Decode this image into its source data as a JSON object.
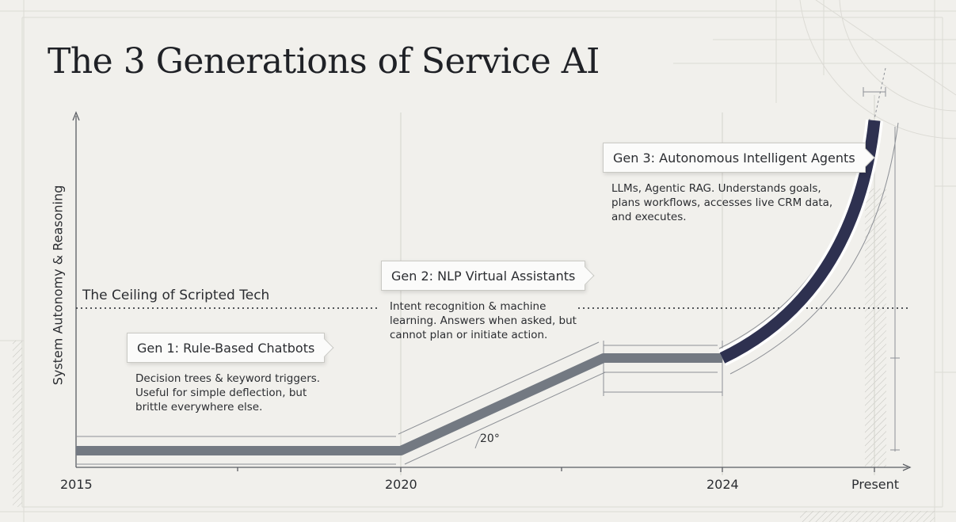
{
  "title": "The 3 Generations of Service AI",
  "y_axis_label": "System Autonomy & Reasoning",
  "x_axis_ticks": [
    "2015",
    "2020",
    "2024",
    "Present"
  ],
  "ceiling_label": "The Ceiling of Scripted Tech",
  "angle_label": "20°",
  "generations": [
    {
      "title": "Gen 1: Rule-Based Chatbots",
      "description": [
        "Decision trees & keyword triggers.",
        "Useful for simple deflection, but",
        "brittle everywhere else."
      ]
    },
    {
      "title": "Gen 2: NLP Virtual Assistants",
      "description": [
        "Intent recognition & machine",
        "learning. Answers when asked, but",
        "cannot plan or initiate action."
      ]
    },
    {
      "title": "Gen 3: Autonomous Intelligent Agents",
      "description": [
        "LLMs, Agentic RAG. Understands goals,",
        "plans workflows, accesses live CRM data,",
        "and executes."
      ]
    }
  ],
  "colors": {
    "background": "#f1f0ec",
    "gen_path": "#737982",
    "gen3_path": "#2e3150",
    "text": "#2b2d31"
  }
}
